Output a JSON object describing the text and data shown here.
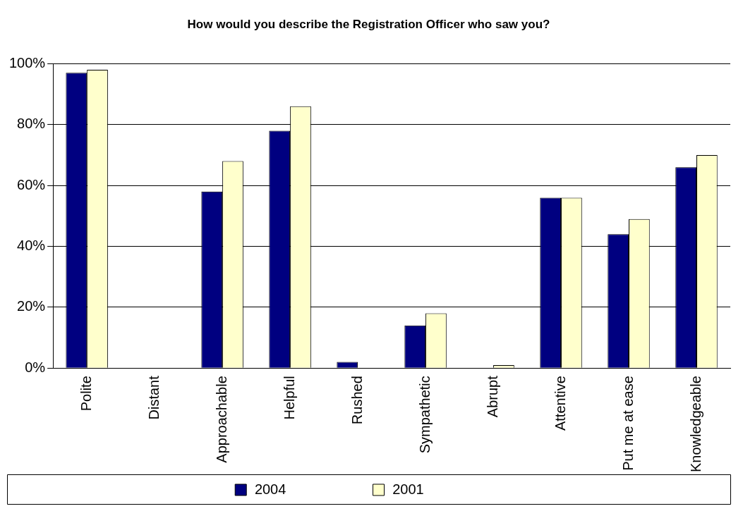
{
  "chart_data": {
    "type": "bar",
    "title": "How would you describe the Registration Officer who saw you?",
    "categories": [
      "Polite",
      "Distant",
      "Approachable",
      "Helpful",
      "Rushed",
      "Sympathetic",
      "Abrupt",
      "Attentive",
      "Put me at ease",
      "Knowledgeable"
    ],
    "series": [
      {
        "name": "2004",
        "color": "#000080",
        "values": [
          97,
          0,
          58,
          78,
          2,
          14,
          0,
          56,
          44,
          66
        ]
      },
      {
        "name": "2001",
        "color": "#ffffcc",
        "values": [
          98,
          0,
          68,
          86,
          0,
          18,
          1,
          56,
          49,
          70
        ]
      }
    ],
    "ylim": [
      0,
      100
    ],
    "yticks": [
      {
        "value": 0,
        "label": "0%"
      },
      {
        "value": 20,
        "label": "20%"
      },
      {
        "value": 40,
        "label": "40%"
      },
      {
        "value": 60,
        "label": "60%"
      },
      {
        "value": 80,
        "label": "80%"
      },
      {
        "value": 100,
        "label": "100%"
      }
    ],
    "grid": "y",
    "legend": "bottom"
  }
}
